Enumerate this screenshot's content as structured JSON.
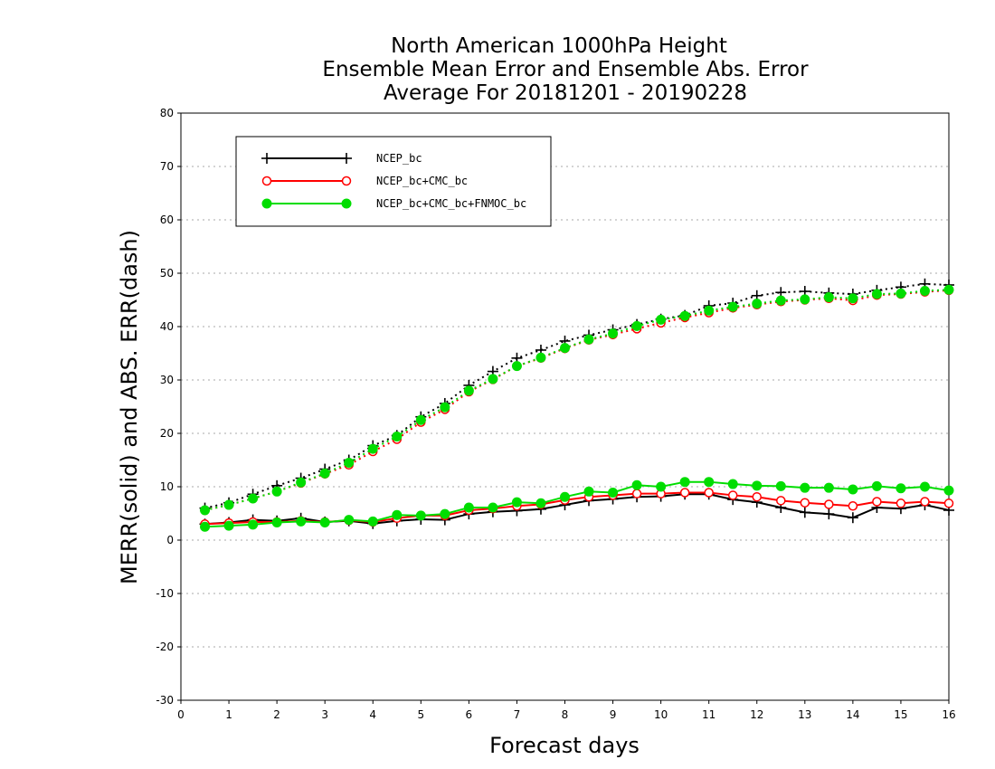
{
  "chart_data": {
    "type": "line",
    "title": [
      "North American 1000hPa Height",
      "Ensemble Mean Error and Ensemble Abs. Error",
      "Average For 20181201 - 20190228"
    ],
    "xlabel": "Forecast days",
    "ylabel": "MERR(solid) and ABS. ERR(dash)",
    "xlim": [
      0,
      16
    ],
    "ylim": [
      -30,
      80
    ],
    "xticks": [
      0,
      1,
      2,
      3,
      4,
      5,
      6,
      7,
      8,
      9,
      10,
      11,
      12,
      13,
      14,
      15,
      16
    ],
    "yticks": [
      -30,
      -20,
      -10,
      0,
      10,
      20,
      30,
      40,
      50,
      60,
      70,
      80
    ],
    "grid": "horizontal dotted",
    "legend_position": "upper-left",
    "x": [
      0.5,
      1,
      1.5,
      2,
      2.5,
      3,
      3.5,
      4,
      4.5,
      5,
      5.5,
      6,
      6.5,
      7,
      7.5,
      8,
      8.5,
      9,
      9.5,
      10,
      10.5,
      11,
      11.5,
      12,
      12.5,
      13,
      13.5,
      14,
      14.5,
      15,
      15.5,
      16
    ],
    "series": [
      {
        "name": "NCEP_bc",
        "color": "#000000",
        "marker": "plus",
        "merr": [
          3.0,
          3.3,
          3.8,
          3.6,
          4.1,
          3.4,
          3.6,
          3.1,
          3.6,
          3.9,
          3.8,
          4.9,
          5.3,
          5.5,
          5.8,
          6.6,
          7.4,
          7.7,
          8.1,
          8.2,
          8.6,
          8.6,
          7.6,
          7.1,
          6.1,
          5.2,
          4.9,
          4.2,
          6.1,
          5.9,
          6.6,
          5.6
        ],
        "abs_err": [
          6.0,
          7.0,
          8.6,
          10.2,
          11.6,
          13.3,
          15.0,
          17.7,
          19.6,
          23.1,
          25.6,
          29.0,
          31.6,
          34.1,
          35.6,
          37.3,
          38.4,
          39.4,
          40.4,
          41.4,
          42.1,
          43.9,
          44.4,
          45.8,
          46.4,
          46.6,
          46.3,
          46.1,
          46.8,
          47.4,
          48.0,
          47.8
        ]
      },
      {
        "name": "NCEP_bc+CMC_bc",
        "color": "#ff0000",
        "marker": "open-circle",
        "merr": [
          3.0,
          3.2,
          3.4,
          3.4,
          3.6,
          3.4,
          3.7,
          3.4,
          4.1,
          4.6,
          4.6,
          5.6,
          5.9,
          6.4,
          6.7,
          7.5,
          8.1,
          8.4,
          8.7,
          8.7,
          8.9,
          8.9,
          8.4,
          8.1,
          7.4,
          7.0,
          6.7,
          6.4,
          7.2,
          6.9,
          7.2,
          6.9
        ],
        "abs_err": [
          5.6,
          6.6,
          7.8,
          9.1,
          10.7,
          12.4,
          14.1,
          16.6,
          18.9,
          22.1,
          24.5,
          27.8,
          30.1,
          32.6,
          34.1,
          35.9,
          37.5,
          38.5,
          39.6,
          40.7,
          41.7,
          42.6,
          43.5,
          44.1,
          44.7,
          45.0,
          45.3,
          44.9,
          45.9,
          46.1,
          46.5,
          46.8
        ]
      },
      {
        "name": "NCEP_bc+CMC_bc+FNMOC_bc",
        "color": "#00dd00",
        "marker": "filled-circle",
        "merr": [
          2.5,
          2.7,
          2.9,
          3.3,
          3.5,
          3.3,
          3.8,
          3.5,
          4.7,
          4.6,
          4.9,
          6.1,
          6.1,
          7.1,
          6.9,
          8.1,
          9.1,
          8.9,
          10.3,
          10.0,
          10.9,
          10.9,
          10.5,
          10.2,
          10.1,
          9.8,
          9.8,
          9.5,
          10.1,
          9.7,
          10.0,
          9.3
        ],
        "abs_err": [
          5.6,
          6.6,
          7.8,
          9.1,
          10.8,
          12.5,
          14.5,
          17.1,
          19.4,
          22.5,
          24.9,
          28.0,
          30.2,
          32.6,
          34.2,
          36.0,
          37.6,
          38.7,
          40.1,
          41.3,
          42.0,
          43.0,
          43.7,
          44.3,
          44.9,
          45.1,
          45.5,
          45.3,
          46.1,
          46.2,
          46.7,
          46.9
        ]
      }
    ]
  }
}
